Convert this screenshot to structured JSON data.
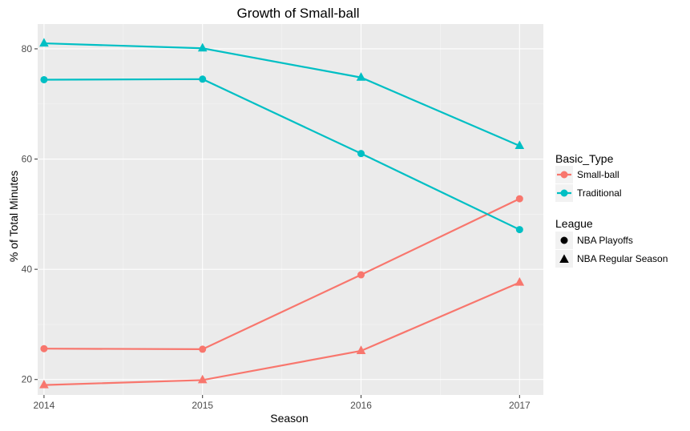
{
  "chart_data": {
    "type": "line",
    "title": "Growth of Small-ball",
    "xlabel": "Season",
    "ylabel": "% of Total Minutes",
    "x": [
      2014,
      2015,
      2016,
      2017
    ],
    "x_tick_labels": [
      "2014",
      "2015",
      "2016",
      "2017"
    ],
    "y_ticks": [
      20,
      40,
      60,
      80
    ],
    "y_tick_labels": [
      "20",
      "40",
      "60",
      "80"
    ],
    "xlim": [
      2013.96,
      2017.15
    ],
    "ylim": [
      17.2,
      84.5
    ],
    "grid": true,
    "legend": {
      "placement": "right",
      "color_title": "Basic_Type",
      "color_entries": [
        {
          "label": "Small-ball",
          "color": "#F8766D"
        },
        {
          "label": "Traditional",
          "color": "#00BFC4"
        }
      ],
      "shape_title": "League",
      "shape_entries": [
        {
          "label": "NBA Playoffs",
          "shape": "circle"
        },
        {
          "label": "NBA Regular Season",
          "shape": "triangle"
        }
      ]
    },
    "series": [
      {
        "type": "Small-ball",
        "league": "NBA Playoffs",
        "color": "#F8766D",
        "shape": "circle",
        "values": [
          25.6,
          25.5,
          39.0,
          52.8
        ]
      },
      {
        "type": "Small-ball",
        "league": "NBA Regular Season",
        "color": "#F8766D",
        "shape": "triangle",
        "values": [
          19.0,
          19.9,
          25.2,
          37.6
        ]
      },
      {
        "type": "Traditional",
        "league": "NBA Playoffs",
        "color": "#00BFC4",
        "shape": "circle",
        "values": [
          74.4,
          74.5,
          61.0,
          47.2
        ]
      },
      {
        "type": "Traditional",
        "league": "NBA Regular Season",
        "color": "#00BFC4",
        "shape": "triangle",
        "values": [
          81.0,
          80.1,
          74.8,
          62.4
        ]
      }
    ]
  }
}
